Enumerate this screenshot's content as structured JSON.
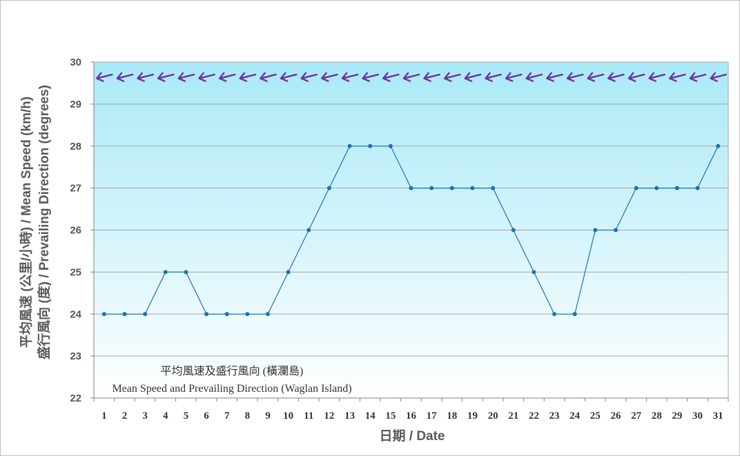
{
  "chart_data": {
    "type": "line",
    "title": "平均風速及盛行風向 (橫瀾島)",
    "subtitle": "Mean Speed and Prevailing Direction (Waglan Island)",
    "xlabel": "日期 / Date",
    "ylabel_line1": "平均風速 (公里/小時) / Mean Speed (km/h)",
    "ylabel_line2": "盛行風向 (度) / Prevailing Direction (degrees)",
    "ylim": [
      22,
      30
    ],
    "yticks": [
      22,
      23,
      24,
      25,
      26,
      27,
      28,
      29,
      30
    ],
    "grid": true,
    "categories": [
      1,
      2,
      3,
      4,
      5,
      6,
      7,
      8,
      9,
      10,
      11,
      12,
      13,
      14,
      15,
      16,
      17,
      18,
      19,
      20,
      21,
      22,
      23,
      24,
      25,
      26,
      27,
      28,
      29,
      30,
      31
    ],
    "series": [
      {
        "values": [
          24,
          24,
          24,
          25,
          25,
          24,
          24,
          24,
          24,
          25,
          26,
          27,
          28,
          28,
          28,
          27,
          27,
          27,
          27,
          27,
          26,
          25,
          24,
          24,
          26,
          26,
          27,
          27,
          27,
          27,
          28
        ],
        "color": "#1f6fb4"
      }
    ],
    "direction_arrows": {
      "icon": "arrow-pointing-wsw-icon",
      "count": 31,
      "color": "#7030a0"
    },
    "colors": {
      "plot_top": "#a9e9f7",
      "plot_bottom": "#ffffff",
      "grid": "#a6a6a6",
      "line": "#1f6fb4",
      "marker": "#1f6fb4",
      "arrow": "#7030a0"
    }
  }
}
